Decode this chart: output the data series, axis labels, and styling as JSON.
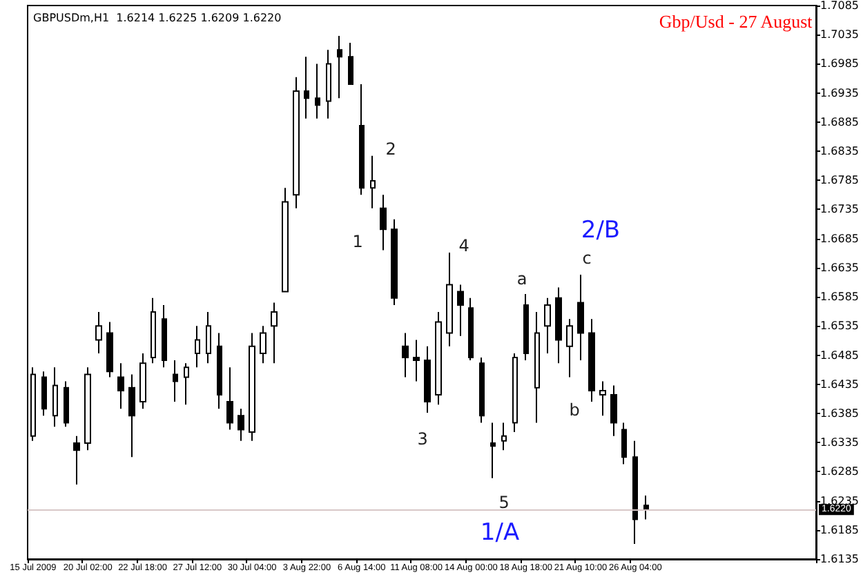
{
  "chart_data": {
    "type": "candlestick",
    "title": "Gbp/Usd - 27 August",
    "subtitle": "GBPUSDm,H1  1.6214 1.6225 1.6209 1.6220",
    "categories": [
      "15 Jul 2009",
      null,
      null,
      null,
      null,
      "20 Jul 02:00",
      null,
      null,
      null,
      null,
      "22 Jul 18:00",
      null,
      null,
      null,
      null,
      "27 Jul 12:00",
      null,
      null,
      null,
      null,
      "30 Jul 04:00",
      null,
      null,
      null,
      null,
      "3 Aug 22:00",
      null,
      null,
      null,
      null,
      "6 Aug 14:00",
      null,
      null,
      null,
      null,
      "11 Aug 08:00",
      null,
      null,
      null,
      null,
      "14 Aug 00:00",
      null,
      null,
      null,
      null,
      "18 Aug 18:00",
      null,
      null,
      null,
      null,
      "21 Aug 10:00",
      null,
      null,
      null,
      null,
      "26 Aug 04:00",
      null,
      null,
      null,
      null,
      null,
      null,
      null,
      null,
      null,
      null,
      null,
      null,
      null,
      null,
      null,
      null
    ],
    "ohlc": [
      [
        1.6346,
        1.6464,
        1.6338,
        1.6452
      ],
      [
        1.6447,
        1.6457,
        1.6381,
        1.6393
      ],
      [
        1.6381,
        1.6464,
        1.6362,
        1.6433
      ],
      [
        1.6429,
        1.644,
        1.6362,
        1.6369
      ],
      [
        1.6334,
        1.6346,
        1.6263,
        1.6322
      ],
      [
        1.6334,
        1.6464,
        1.6322,
        1.6452
      ],
      [
        1.6511,
        1.6559,
        1.6488,
        1.6535
      ],
      [
        1.6523,
        1.6542,
        1.6447,
        1.6457
      ],
      [
        1.6447,
        1.6471,
        1.6393,
        1.6424
      ],
      [
        1.6429,
        1.6452,
        1.631,
        1.6381
      ],
      [
        1.6405,
        1.6488,
        1.6393,
        1.6471
      ],
      [
        1.6481,
        1.6583,
        1.6471,
        1.6559
      ],
      [
        1.6547,
        1.6571,
        1.6464,
        1.6476
      ],
      [
        1.6452,
        1.6476,
        1.6405,
        1.644
      ],
      [
        1.6447,
        1.6471,
        1.64,
        1.6464
      ],
      [
        1.6488,
        1.6535,
        1.6464,
        1.6511
      ],
      [
        1.6488,
        1.6559,
        1.6471,
        1.6535
      ],
      [
        1.65,
        1.6523,
        1.6393,
        1.6417
      ],
      [
        1.6405,
        1.6464,
        1.6357,
        1.6369
      ],
      [
        1.6381,
        1.6393,
        1.6338,
        1.6357
      ],
      [
        1.6353,
        1.6523,
        1.6338,
        1.65
      ],
      [
        1.6488,
        1.6535,
        1.6471,
        1.6523
      ],
      [
        1.6535,
        1.6575,
        1.6471,
        1.6559
      ],
      [
        1.6594,
        1.6772,
        1.6594,
        1.6748
      ],
      [
        1.676,
        1.6962,
        1.6737,
        1.6938
      ],
      [
        1.6938,
        1.6997,
        1.6891,
        1.6926
      ],
      [
        1.6926,
        1.6985,
        1.6891,
        1.6914
      ],
      [
        1.6921,
        1.7009,
        1.6891,
        1.6985
      ],
      [
        1.7009,
        1.7033,
        1.6926,
        1.6997
      ],
      [
        1.6997,
        1.7021,
        1.695,
        1.695
      ],
      [
        1.6879,
        1.695,
        1.676,
        1.6772
      ],
      [
        1.6772,
        1.6827,
        1.6737,
        1.6784
      ],
      [
        1.6737,
        1.676,
        1.6665,
        1.6701
      ],
      [
        1.6701,
        1.6718,
        1.6571,
        1.6583
      ],
      [
        1.65,
        1.6523,
        1.6447,
        1.6481
      ],
      [
        1.6481,
        1.6511,
        1.644,
        1.6476
      ],
      [
        1.6476,
        1.65,
        1.6386,
        1.6405
      ],
      [
        1.6417,
        1.6559,
        1.64,
        1.6542
      ],
      [
        1.6523,
        1.6661,
        1.65,
        1.6606
      ],
      [
        1.6594,
        1.6606,
        1.6518,
        1.6571
      ],
      [
        1.6566,
        1.6583,
        1.6476,
        1.6481
      ],
      [
        1.6471,
        1.6481,
        1.6369,
        1.6381
      ],
      [
        1.6334,
        1.6369,
        1.6274,
        1.6329
      ],
      [
        1.6338,
        1.6369,
        1.6322,
        1.6346
      ],
      [
        1.6369,
        1.6488,
        1.6353,
        1.6481
      ],
      [
        1.6571,
        1.659,
        1.6476,
        1.6488
      ],
      [
        1.6429,
        1.6559,
        1.6369,
        1.6523
      ],
      [
        1.6535,
        1.6583,
        1.6488,
        1.6571
      ],
      [
        1.6583,
        1.6601,
        1.6471,
        1.6511
      ],
      [
        1.65,
        1.6547,
        1.6447,
        1.6535
      ],
      [
        1.6575,
        1.6623,
        1.6476,
        1.6523
      ],
      [
        1.6523,
        1.6547,
        1.6405,
        1.6424
      ],
      [
        1.6417,
        1.644,
        1.6381,
        1.6424
      ],
      [
        1.6417,
        1.6433,
        1.6346,
        1.6369
      ],
      [
        1.6357,
        1.6369,
        1.6298,
        1.631
      ],
      [
        1.631,
        1.6338,
        1.6161,
        1.6203
      ],
      [
        1.6227,
        1.6244,
        1.6203,
        1.622
      ],
      null,
      null,
      null,
      null,
      null,
      null,
      null,
      null,
      null,
      null,
      null,
      null,
      null,
      null,
      null
    ],
    "color": "#000000",
    "ylim": [
      1.6135,
      1.7085
    ],
    "yticks": [
      1.6135,
      1.6185,
      1.6235,
      1.6285,
      1.6335,
      1.6385,
      1.6435,
      1.6485,
      1.6535,
      1.6585,
      1.6635,
      1.6685,
      1.6735,
      1.6785,
      1.6835,
      1.6885,
      1.6935,
      1.6985,
      1.7035,
      1.7085
    ],
    "ref_lines": [
      {
        "axis": "y",
        "value": 1.622,
        "label": "1.6220",
        "color": "#d8c8c8"
      }
    ],
    "annotations": [
      "1",
      "2",
      "3",
      "4",
      "5",
      "a",
      "b",
      "c",
      "2/B",
      "1/A"
    ],
    "grid": false
  }
}
